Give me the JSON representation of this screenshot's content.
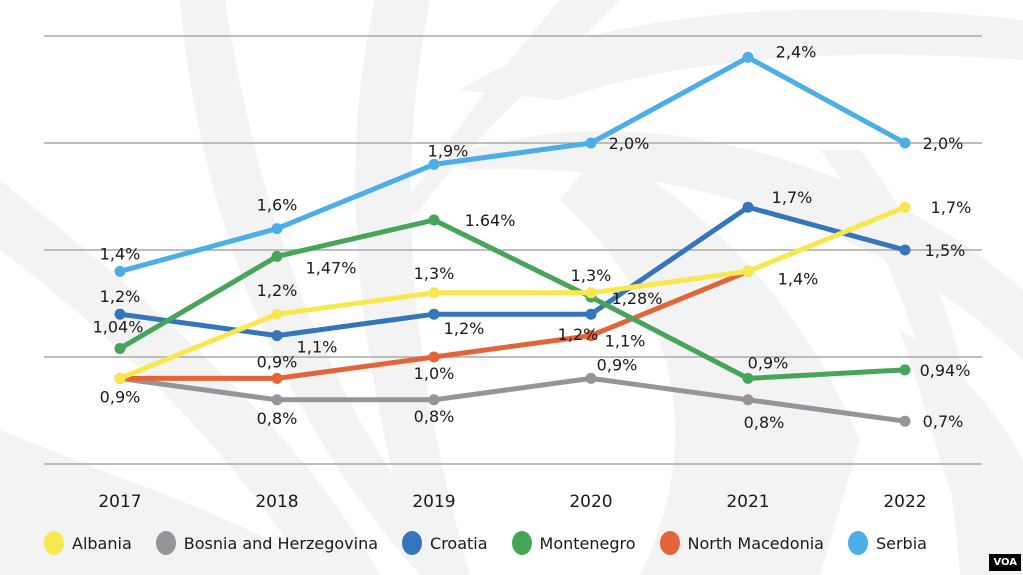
{
  "chart_data": {
    "type": "line",
    "title": "",
    "xlabel": "",
    "ylabel": "",
    "x": [
      "2017",
      "2018",
      "2019",
      "2020",
      "2021",
      "2022"
    ],
    "ylim": [
      0.5,
      2.5
    ],
    "grid": true,
    "gridlines": [
      2.5,
      2.0,
      1.5,
      1.0,
      0.5
    ],
    "legend_position": "bottom",
    "series": [
      {
        "name": "Albania",
        "color": "#f7e850",
        "values": [
          0.9,
          1.2,
          1.3,
          1.3,
          1.4,
          1.7
        ],
        "labels": [
          "0,9%",
          "1,2%",
          "1,3%",
          "1,3%",
          "",
          "1,7%"
        ]
      },
      {
        "name": "Bosnia and Herzegovina",
        "color": "#939598",
        "values": [
          0.9,
          0.8,
          0.8,
          0.9,
          0.8,
          0.7
        ],
        "labels": [
          "",
          "0,8%",
          "0,8%",
          "0,9%",
          "0,8%",
          "0,7%"
        ]
      },
      {
        "name": "Croatia",
        "color": "#3575bb",
        "values": [
          1.2,
          1.1,
          1.2,
          1.2,
          1.7,
          1.5
        ],
        "labels": [
          "1,2%",
          "1,1%",
          "1,2%",
          "1,2%",
          "1,7%",
          "1,5%"
        ]
      },
      {
        "name": "Montenegro",
        "color": "#47a55a",
        "values": [
          1.04,
          1.47,
          1.64,
          1.28,
          0.9,
          0.94
        ],
        "labels": [
          "1,04%",
          "1,47%",
          "1.64%",
          "1,28%",
          "0,9%",
          "0,94%"
        ]
      },
      {
        "name": "North Macedonia",
        "color": "#e4643a",
        "values": [
          0.9,
          0.9,
          1.0,
          1.1,
          1.4,
          null
        ],
        "labels": [
          "",
          "0,9%",
          "1,0%",
          "1,1%",
          "1,4%",
          ""
        ]
      },
      {
        "name": "Serbia",
        "color": "#4baee8",
        "values": [
          1.4,
          1.6,
          1.9,
          2.0,
          2.4,
          2.0
        ],
        "labels": [
          "1,4%",
          "1,6%",
          "1,9%",
          "2,0%",
          "2,4%",
          "2,0%"
        ]
      }
    ]
  },
  "source_logo": "VOA",
  "colors": {
    "grid": "#a7a9ac",
    "background_swirl": "#f3f3f3",
    "text": "#1a1a1a"
  }
}
